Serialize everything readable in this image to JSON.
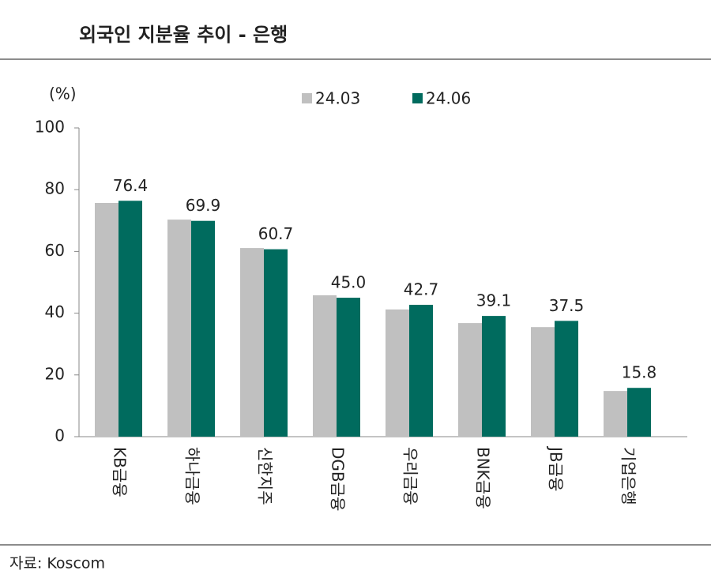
{
  "chart_data": {
    "type": "bar",
    "title": "외국인 지분율 추이 - 은행",
    "unit_label": "(%)",
    "source": "자료: Koscom",
    "categories": [
      "KB금융",
      "하나금융",
      "신한지주",
      "DGB금융",
      "우리금융",
      "BNK금융",
      "JB금융",
      "기업은행"
    ],
    "series": [
      {
        "name": "24.03",
        "color": "#c0c0c0",
        "values": [
          75.7,
          70.3,
          61.1,
          45.8,
          41.2,
          36.8,
          35.5,
          14.8
        ]
      },
      {
        "name": "24.06",
        "color": "#006b5e",
        "values": [
          76.4,
          69.9,
          60.7,
          45.0,
          42.7,
          39.1,
          37.5,
          15.8
        ],
        "value_labels": [
          "76.4",
          "69.9",
          "60.7",
          "45.0",
          "42.7",
          "39.1",
          "37.5",
          "15.8"
        ]
      }
    ],
    "ylim": [
      0,
      100
    ],
    "yticks": [
      0,
      20,
      40,
      60,
      80,
      100
    ],
    "grid": false
  }
}
